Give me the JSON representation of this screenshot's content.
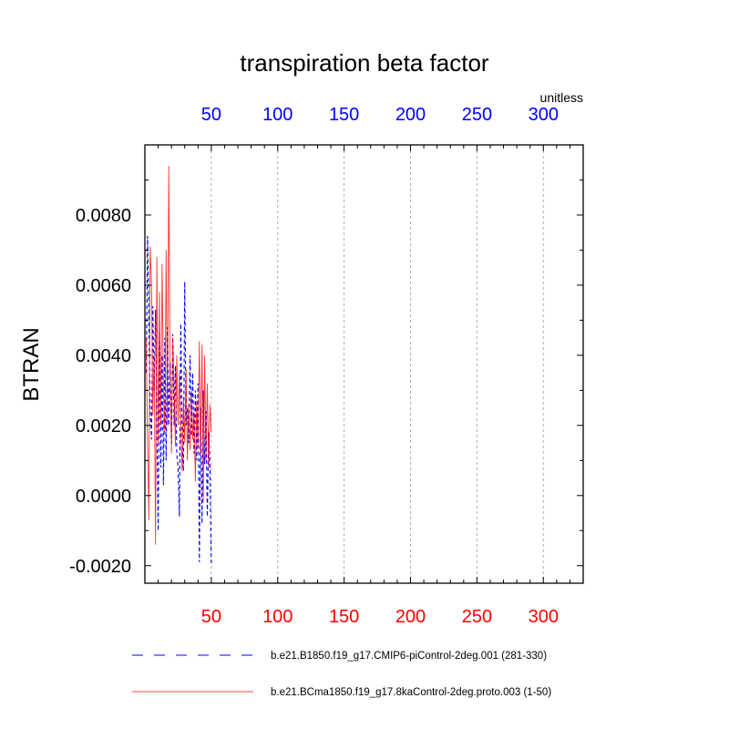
{
  "chart_data": {
    "type": "line",
    "title": "transpiration beta factor",
    "units": "unitless",
    "ylabel": "BTRAN",
    "xlabel": "",
    "xlim": [
      0,
      330
    ],
    "ylim": [
      -0.0025,
      0.01
    ],
    "x_ticks": [
      50,
      100,
      150,
      200,
      250,
      300
    ],
    "x_tick_labels": [
      "50",
      "100",
      "150",
      "200",
      "250",
      "300"
    ],
    "y_ticks": [
      -0.002,
      0.0,
      0.002,
      0.004,
      0.006,
      0.008
    ],
    "y_tick_labels": [
      "-0.0020",
      "0.0000",
      "0.0020",
      "0.0040",
      "0.0060",
      "0.0080"
    ],
    "grid": "vertical-dashed",
    "top_axis_color": "#0000ff",
    "bottom_axis_color": "#ff0000",
    "series": [
      {
        "name": "b.e21.B1850.f19_g17.CMIP6-piControl-2deg.001 (281-330)",
        "color": "#0000ff",
        "dash": "dashed",
        "x": [
          1,
          2,
          3,
          4,
          5,
          6,
          7,
          8,
          9,
          10,
          11,
          12,
          13,
          14,
          15,
          16,
          17,
          18,
          19,
          20,
          21,
          22,
          23,
          24,
          25,
          26,
          27,
          28,
          29,
          30,
          31,
          32,
          33,
          34,
          35,
          36,
          37,
          38,
          39,
          40,
          41,
          42,
          43,
          44,
          45,
          46,
          47,
          48,
          49,
          50
        ],
        "y": [
          0.0035,
          0.0074,
          0.0049,
          0.0025,
          0.0016,
          0.0054,
          0.003,
          0.0053,
          0.0021,
          -0.001,
          0.0044,
          0.0008,
          0.004,
          0.0003,
          0.0045,
          0.001,
          0.0048,
          0.002,
          0.0038,
          0.0015,
          0.0046,
          0.002,
          0.0037,
          0.0012,
          0.0008,
          -0.0006,
          0.0049,
          0.0018,
          0.0007,
          0.0061,
          0.002,
          0.0025,
          0.0015,
          0.004,
          0.0017,
          0.0035,
          0.0012,
          0.003,
          0.001,
          0.0032,
          -0.0019,
          0.0025,
          -0.0008,
          0.003,
          0.0009,
          0.0024,
          -0.0006,
          0.0018,
          0.0008,
          -0.002
        ]
      },
      {
        "name": "b.e21.BCma1850.f19_g17.8kaControl-2deg.proto.003 (1-50)",
        "color": "#ff0000",
        "dash": "solid",
        "x": [
          1,
          2,
          3,
          4,
          5,
          6,
          7,
          8,
          9,
          10,
          11,
          12,
          13,
          14,
          15,
          16,
          17,
          18,
          19,
          20,
          21,
          22,
          23,
          24,
          25,
          26,
          27,
          28,
          29,
          30,
          31,
          32,
          33,
          34,
          35,
          36,
          37,
          38,
          39,
          40,
          41,
          42,
          43,
          44,
          45,
          46,
          47,
          48,
          49,
          50
        ],
        "y": [
          0.0045,
          0.0015,
          -0.0007,
          0.0071,
          0.006,
          0.0023,
          0.004,
          -0.0014,
          0.0068,
          0.0015,
          0.0058,
          0.002,
          0.0066,
          0.003,
          0.0018,
          0.007,
          0.002,
          0.0094,
          0.0035,
          0.0012,
          0.0045,
          0.003,
          0.0014,
          0.004,
          0.002,
          0.0035,
          0.0018,
          0.0007,
          0.0028,
          0.0015,
          0.0036,
          0.001,
          0.0026,
          0.0013,
          0.003,
          0.0016,
          0.0024,
          0.0004,
          0.0027,
          0.0014,
          0.0044,
          0.0012,
          0.0043,
          -0.0002,
          0.004,
          0.001,
          0.0032,
          0.0008,
          0.0026,
          0.0018
        ]
      }
    ]
  }
}
